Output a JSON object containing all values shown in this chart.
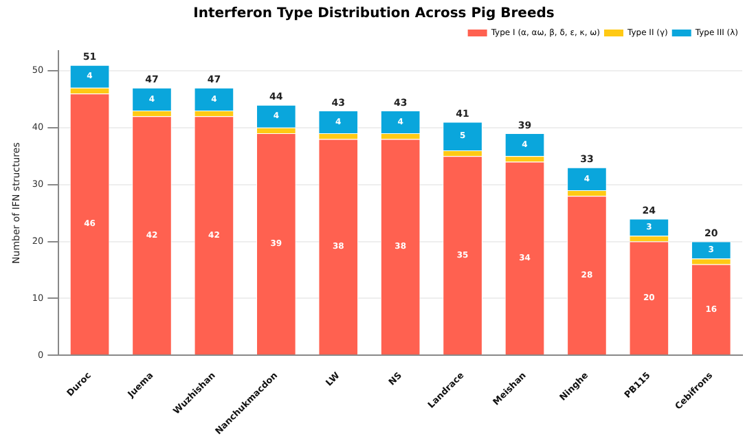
{
  "chart_data": {
    "type": "bar",
    "stacked": true,
    "title": "Interferon Type Distribution Across Pig Breeds",
    "ylabel": "Number of IFN structures",
    "categories": [
      "Duroc",
      "Juema",
      "Wuzhishan",
      "Nanchukmacdon",
      "LW",
      "NS",
      "Landrace",
      "Meishan",
      "Ninghe",
      "PB115",
      "Cebifrons"
    ],
    "series": [
      {
        "name": "Type I (α, αω, β, δ, ε, κ, ω)",
        "color": "#ff6150",
        "values": [
          46,
          42,
          42,
          39,
          38,
          38,
          35,
          34,
          28,
          20,
          16
        ],
        "value_labels": [
          "46",
          "42",
          "42",
          "39",
          "38",
          "38",
          "35",
          "34",
          "28",
          "20",
          "16"
        ]
      },
      {
        "name": "Type II (γ)",
        "color": "#ffc914",
        "values": [
          1,
          1,
          1,
          1,
          1,
          1,
          1,
          1,
          1,
          1,
          1
        ]
      },
      {
        "name": "Type III (λ)",
        "color": "#0aa6dc",
        "values": [
          4,
          4,
          4,
          4,
          4,
          4,
          5,
          4,
          4,
          3,
          3
        ],
        "value_labels": [
          "4",
          "4",
          "4",
          "4",
          "4",
          "4",
          "5",
          "4",
          "4",
          "3",
          "3"
        ]
      }
    ],
    "totals": [
      "51",
      "47",
      "47",
      "44",
      "43",
      "43",
      "41",
      "39",
      "33",
      "24",
      "20"
    ],
    "ylim": [
      0,
      53.5
    ],
    "yticks": [
      0,
      10,
      20,
      30,
      40,
      50
    ],
    "grid": "y",
    "legend": "top right"
  }
}
